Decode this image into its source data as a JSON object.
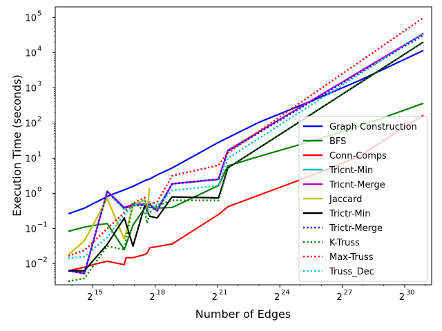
{
  "chart_data": {
    "type": "line",
    "title": "",
    "xlabel": "Number of Edges",
    "ylabel": "Execution Time (seconds)",
    "x_scale": "log2",
    "y_scale": "log10",
    "xlim_exponent": [
      13.2,
      31.3
    ],
    "ylim_exponent": [
      -2.6,
      5.3
    ],
    "x_ticks": [
      {
        "base": "2",
        "exp": "15",
        "value": 15
      },
      {
        "base": "2",
        "exp": "18",
        "value": 18
      },
      {
        "base": "2",
        "exp": "21",
        "value": 21
      },
      {
        "base": "2",
        "exp": "24",
        "value": 24
      },
      {
        "base": "2",
        "exp": "27",
        "value": 27
      },
      {
        "base": "2",
        "exp": "30",
        "value": 30
      }
    ],
    "y_ticks": [
      {
        "base": "10",
        "exp": "−2",
        "value": -2
      },
      {
        "base": "10",
        "exp": "−1",
        "value": -1
      },
      {
        "base": "10",
        "exp": "0",
        "value": 0
      },
      {
        "base": "10",
        "exp": "1",
        "value": 1
      },
      {
        "base": "10",
        "exp": "2",
        "value": 2
      },
      {
        "base": "10",
        "exp": "3",
        "value": 3
      },
      {
        "base": "10",
        "exp": "4",
        "value": 4
      },
      {
        "base": "10",
        "exp": "5",
        "value": 5
      }
    ],
    "grid": false,
    "legend_position": "right",
    "x_values_unit": "log2 of number of edges",
    "y_values_unit": "log10 of execution time in seconds",
    "series": [
      {
        "name": "Graph Construction",
        "color": "#0000ff",
        "style": "solid",
        "x": [
          13.83,
          14.6,
          15.2,
          15.85,
          16.52,
          16.94,
          17.5,
          17.74,
          18.1,
          18.82,
          21.05,
          21.5,
          23.0,
          25.5,
          27.8,
          30.9
        ],
        "y": [
          -0.58,
          -0.42,
          -0.24,
          -0.05,
          0.1,
          0.2,
          0.36,
          0.41,
          0.52,
          0.72,
          1.45,
          1.58,
          2.02,
          2.62,
          3.2,
          4.06
        ]
      },
      {
        "name": "BFS",
        "color": "#008000",
        "style": "solid",
        "x": [
          13.83,
          14.6,
          15.2,
          15.7,
          16.52,
          16.94,
          17.5,
          17.74,
          18.1,
          18.82,
          21.05,
          21.5,
          23.0,
          25.5,
          27.8,
          30.9
        ],
        "y": [
          -1.08,
          -0.96,
          -0.9,
          -0.86,
          -1.6,
          -0.9,
          -0.42,
          -0.4,
          -0.42,
          -0.4,
          0.22,
          0.78,
          1.05,
          1.48,
          1.9,
          2.56
        ]
      },
      {
        "name": "Conn-Comps",
        "color": "#ff0000",
        "style": "solid",
        "x": [
          13.83,
          14.6,
          15.2,
          15.7,
          16.52,
          16.6,
          16.94,
          17.5,
          17.62,
          17.74,
          18.82,
          21.05,
          21.5,
          25.5,
          27.8,
          30.9
        ],
        "y": [
          -2.2,
          -2.1,
          -2.0,
          -1.93,
          -2.03,
          -1.83,
          -1.83,
          -1.74,
          -1.7,
          -1.55,
          -1.44,
          -0.6,
          -0.38,
          0.5,
          1.05,
          2.22
        ]
      },
      {
        "name": "Tricnt-Min",
        "color": "#00bfbf",
        "style": "solid",
        "x": [
          13.83,
          14.6,
          15.7,
          16.52,
          16.94,
          17.5,
          17.74,
          18.1,
          18.82,
          21.05,
          21.5,
          30.9
        ],
        "y": [
          -2.2,
          -2.25,
          0.05,
          -0.45,
          -0.32,
          -0.35,
          -0.32,
          -0.45,
          0.27,
          0.4,
          1.22,
          4.54
        ]
      },
      {
        "name": "Tricnt-Merge",
        "color": "#bf00bf",
        "style": "solid",
        "x": [
          13.83,
          14.6,
          15.7,
          16.52,
          16.94,
          17.5,
          17.74,
          18.1,
          18.82,
          21.05,
          21.5,
          30.9
        ],
        "y": [
          -2.2,
          -2.28,
          0.06,
          -0.4,
          -0.32,
          -0.3,
          -0.32,
          -0.5,
          0.27,
          0.4,
          1.22,
          4.54
        ]
      },
      {
        "name": "Jaccard",
        "color": "#bfbf00",
        "style": "solid",
        "x": [
          13.83,
          14.6,
          15.7,
          16.52,
          16.94,
          17.5,
          17.62,
          17.74
        ],
        "y": [
          -1.75,
          -1.35,
          -0.15,
          -1.3,
          -0.35,
          -0.18,
          -0.45,
          0.15
        ]
      },
      {
        "name": "Trictr-Min",
        "color": "#000000",
        "style": "solid",
        "x": [
          13.83,
          14.6,
          15.7,
          16.52,
          16.94,
          17.5,
          17.74,
          18.1,
          18.82,
          21.05,
          21.5,
          30.9
        ],
        "y": [
          -2.2,
          -2.2,
          -1.45,
          -0.7,
          -1.5,
          -0.35,
          -0.65,
          -0.7,
          -0.1,
          -0.13,
          0.72,
          4.3
        ]
      },
      {
        "name": "Trictr-Merge",
        "color": "#0000ff",
        "style": "dotted",
        "x": [
          13.83,
          14.6,
          15.7,
          16.52,
          16.94,
          17.5,
          17.74,
          18.1,
          18.82,
          21.05,
          21.5,
          30.9
        ],
        "y": [
          -2.2,
          -2.28,
          0.04,
          -0.42,
          -0.35,
          -0.33,
          -0.32,
          -0.5,
          0.27,
          0.4,
          1.2,
          4.5
        ]
      },
      {
        "name": "K-Truss",
        "color": "#008000",
        "style": "dotted",
        "x": [
          13.83,
          14.6,
          15.7,
          16.52,
          16.94,
          17.5,
          17.62,
          17.74,
          18.1,
          18.82,
          21.05,
          21.5,
          30.9
        ],
        "y": [
          -2.5,
          -2.42,
          -1.5,
          -1.6,
          -0.25,
          -0.5,
          -0.85,
          -0.55,
          -0.35,
          -0.2,
          -0.2,
          0.72,
          4.3
        ]
      },
      {
        "name": "Max-Truss",
        "color": "#ff0000",
        "style": "dotted",
        "x": [
          13.83,
          14.6,
          15.7,
          16.52,
          16.94,
          17.5,
          17.62,
          17.74,
          18.1,
          18.82,
          21.05,
          21.5,
          30.9
        ],
        "y": [
          -1.78,
          -1.62,
          -1.0,
          -0.55,
          -0.28,
          -0.12,
          -0.45,
          -0.3,
          -0.25,
          0.5,
          0.8,
          1.15,
          4.99
        ]
      },
      {
        "name": "Truss_Dec",
        "color": "#00bfbf",
        "style": "dotted",
        "x": [
          13.83,
          14.6,
          15.7,
          16.52,
          16.94,
          17.5,
          17.62,
          17.74,
          18.1,
          18.82,
          21.05,
          21.5,
          30.9
        ],
        "y": [
          -1.85,
          -1.8,
          -1.25,
          -0.6,
          -0.35,
          -0.18,
          -0.6,
          -0.25,
          -0.35,
          0.08,
          0.22,
          1.0,
          4.55
        ]
      }
    ]
  }
}
